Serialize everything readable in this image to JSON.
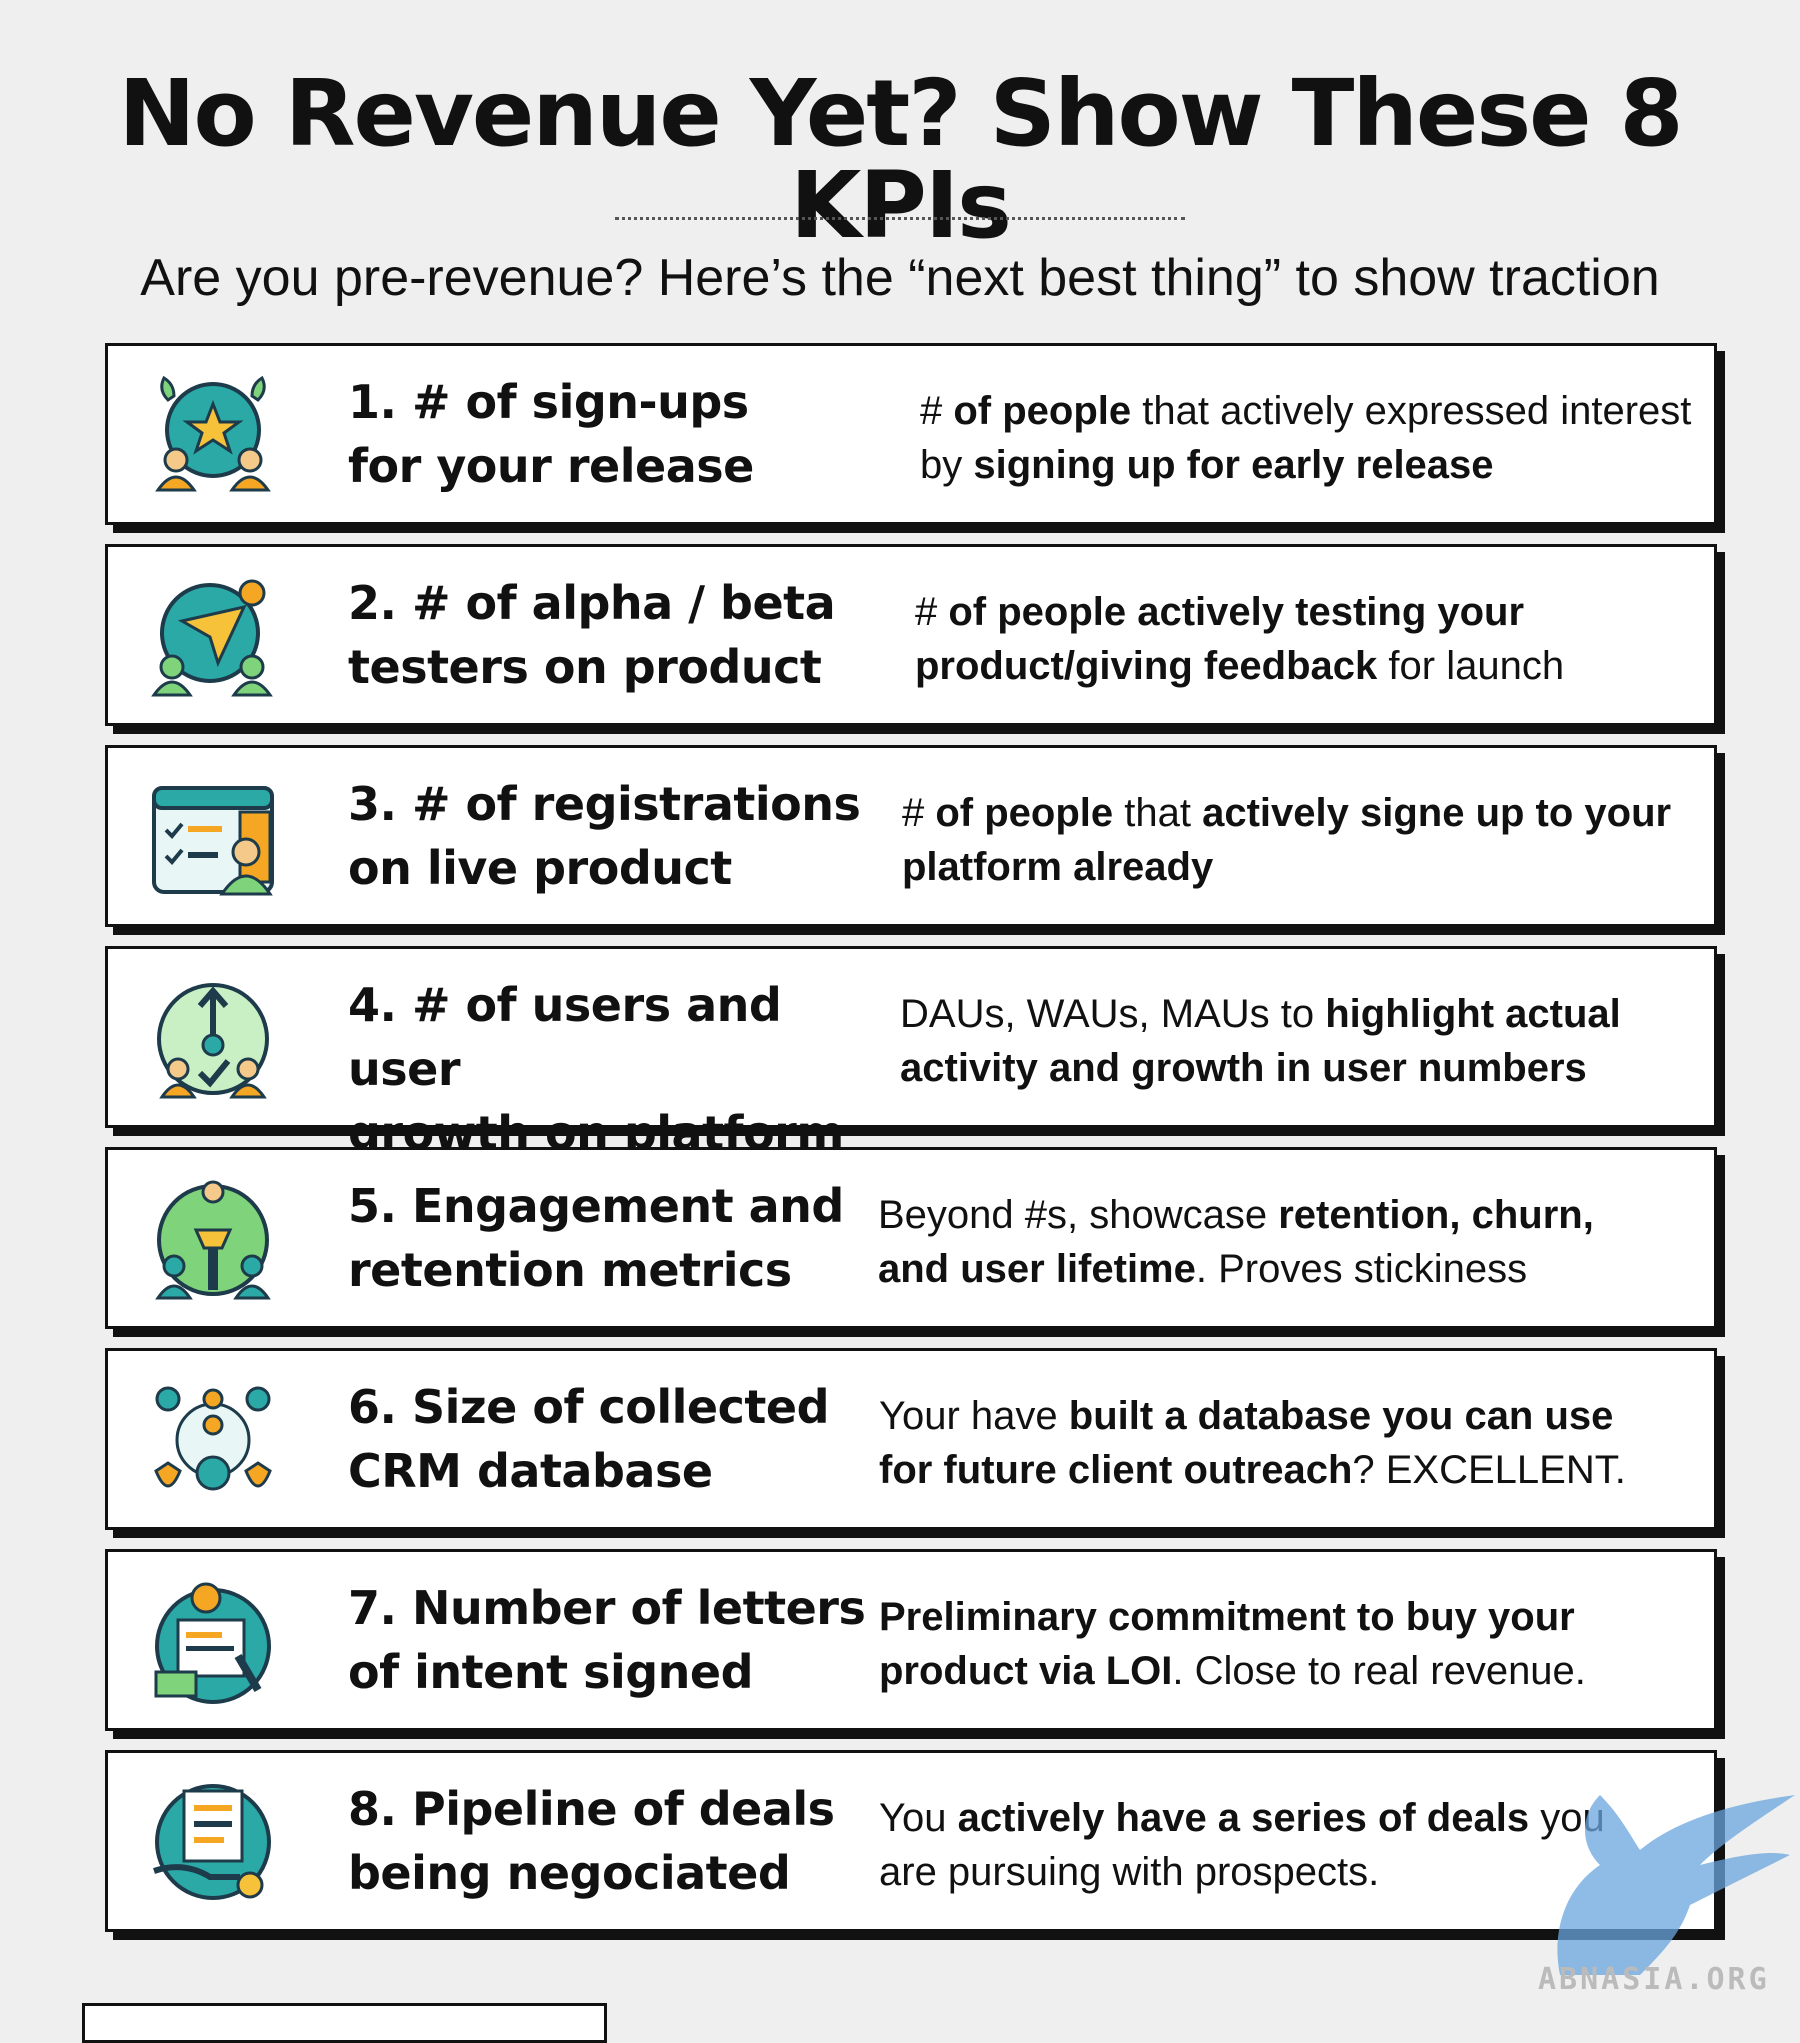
{
  "header": {
    "title": "No Revenue Yet? Show These 8 KPIs",
    "subtitle": "Are you pre-revenue? Here’s the “next best thing” to show traction"
  },
  "kpis": [
    {
      "icon": "signup-star-icon",
      "title_line1": "1. # of sign-ups",
      "title_line2": "for your release",
      "desc": [
        {
          "t": "# ",
          "b": false
        },
        {
          "t": "of people",
          "b": true
        },
        {
          "t": " that actively expressed interest by ",
          "b": false
        },
        {
          "t": "signing up for early release",
          "b": true
        }
      ]
    },
    {
      "icon": "paper-plane-testers-icon",
      "title_line1": "2. # of alpha / beta",
      "title_line2": "testers on product",
      "desc": [
        {
          "t": "# ",
          "b": false
        },
        {
          "t": "of people actively testing your product/giving feedback",
          "b": true
        },
        {
          "t": " for launch",
          "b": false
        }
      ]
    },
    {
      "icon": "registration-form-icon",
      "title_line1": "3. # of registrations",
      "title_line2": "on live product",
      "desc": [
        {
          "t": "# ",
          "b": false
        },
        {
          "t": "of people",
          "b": true
        },
        {
          "t": " that ",
          "b": false
        },
        {
          "t": "actively signe up to your platform already",
          "b": true
        }
      ]
    },
    {
      "icon": "user-growth-icon",
      "title_line1": "4. # of users and user",
      "title_line2": "growth on platform",
      "desc": [
        {
          "t": "DAUs, WAUs, MAUs to ",
          "b": false
        },
        {
          "t": "highlight actual activity and growth in user numbers",
          "b": true
        }
      ]
    },
    {
      "icon": "engagement-torch-icon",
      "title_line1": "5. Engagement and",
      "title_line2": "retention metrics",
      "desc": [
        {
          "t": "Beyond #s, showcase ",
          "b": false
        },
        {
          "t": "retention, churn, and user lifetime",
          "b": true
        },
        {
          "t": ". Proves stickiness",
          "b": false
        }
      ]
    },
    {
      "icon": "crm-network-icon",
      "title_line1": "6. Size of collected",
      "title_line2": "CRM database",
      "desc": [
        {
          "t": "Your have ",
          "b": false
        },
        {
          "t": "built a database you can use for future client outreach",
          "b": true
        },
        {
          "t": "? EXCELLENT.",
          "b": false
        }
      ]
    },
    {
      "icon": "letter-of-intent-icon",
      "title_line1": "7. Number of letters",
      "title_line2": "of intent signed",
      "desc": [
        {
          "t": "Preliminary commitment to buy your product via LOI",
          "b": true
        },
        {
          "t": ". Close to real revenue.",
          "b": false
        }
      ]
    },
    {
      "icon": "deal-pipeline-icon",
      "title_line1": "8. Pipeline of deals",
      "title_line2": "being negociated",
      "desc": [
        {
          "t": "You ",
          "b": false
        },
        {
          "t": "actively have a series of deals",
          "b": true
        },
        {
          "t": " you are pursuing with prospects.",
          "b": false
        }
      ]
    }
  ],
  "watermark": {
    "text": "ABNASIA.ORG",
    "logo": "griffin-logo"
  },
  "colors": {
    "background": "#efefef",
    "card_border": "#111111",
    "icon_teal": "#1e9e9a",
    "icon_green": "#7fd37a",
    "icon_orange": "#f5a623",
    "icon_dark": "#1d3b4a"
  }
}
